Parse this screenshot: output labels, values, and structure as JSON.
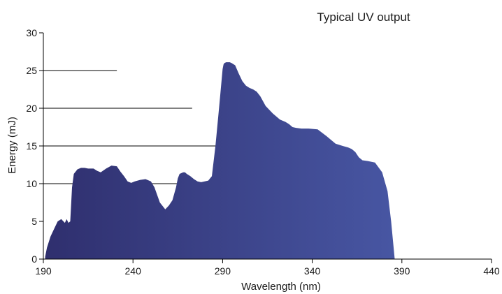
{
  "chart_data": {
    "type": "area",
    "title": "Typical UV output",
    "xlabel": "Wavelength (nm)",
    "ylabel": "Energy (mJ)",
    "xlim": [
      190,
      440
    ],
    "ylim": [
      0,
      30
    ],
    "x_ticks": [
      190,
      240,
      290,
      340,
      390,
      440
    ],
    "y_ticks": [
      0,
      5,
      10,
      15,
      20,
      25,
      30
    ],
    "gridlines_y": [
      {
        "y": 10,
        "x_end": 290
      },
      {
        "y": 15,
        "x_end": 290
      },
      {
        "y": 20,
        "x_end": 273
      },
      {
        "y": 25,
        "x_end": 231
      }
    ],
    "fill_gradient": [
      "#2f2f6e",
      "#4a5aa8"
    ],
    "series": [
      {
        "x": [
          191,
          192,
          194,
          196,
          198,
          200,
          202,
          203,
          204,
          205,
          206,
          207,
          209,
          211,
          213,
          215,
          218,
          220,
          222,
          225,
          228,
          231,
          233,
          235,
          237,
          239,
          241,
          244,
          247,
          250,
          252,
          255,
          258,
          260,
          262,
          264,
          265,
          266,
          268,
          269,
          270,
          272,
          274,
          276,
          278,
          280,
          282,
          284,
          286,
          288,
          289,
          290,
          290.5,
          291,
          292,
          293,
          294,
          295,
          297,
          299,
          301,
          303,
          305,
          307,
          309,
          311,
          314,
          318,
          322,
          325,
          327,
          329,
          331,
          334,
          338,
          343,
          348,
          353,
          357,
          360,
          362,
          364,
          366,
          368,
          371,
          375,
          379,
          382,
          384,
          386,
          388,
          390,
          393,
          395,
          397,
          399,
          401,
          402,
          403,
          404,
          405,
          405.5
        ],
        "y": [
          0.3,
          1.5,
          3,
          4,
          5,
          5.3,
          4.8,
          5.3,
          4.8,
          5.0,
          9.5,
          11.3,
          11.9,
          12.1,
          12.1,
          12.0,
          12.0,
          11.7,
          11.5,
          12.0,
          12.4,
          12.3,
          11.6,
          11.0,
          10.3,
          10.1,
          10.3,
          10.5,
          10.6,
          10.3,
          9.5,
          7.5,
          6.6,
          7.1,
          7.8,
          9.5,
          10.7,
          11.3,
          11.5,
          11.5,
          11.3,
          11.0,
          10.6,
          10.3,
          10.2,
          10.3,
          10.4,
          11.0,
          15.0,
          20.0,
          22.6,
          25.2,
          25.8,
          26.0,
          26.1,
          26.1,
          26.1,
          26.0,
          25.7,
          24.6,
          23.6,
          23.0,
          22.7,
          22.5,
          22.2,
          21.6,
          20.3,
          19.3,
          18.5,
          18.2,
          17.9,
          17.5,
          17.4,
          17.3,
          17.3,
          17.2,
          16.3,
          15.3,
          15.0,
          14.8,
          14.6,
          14.2,
          13.5,
          13.1,
          13.0,
          12.8,
          11.5,
          9.0,
          5.0,
          0,
          0,
          0,
          0,
          0,
          0,
          0,
          0,
          0,
          0,
          0,
          0,
          0
        ]
      }
    ]
  }
}
